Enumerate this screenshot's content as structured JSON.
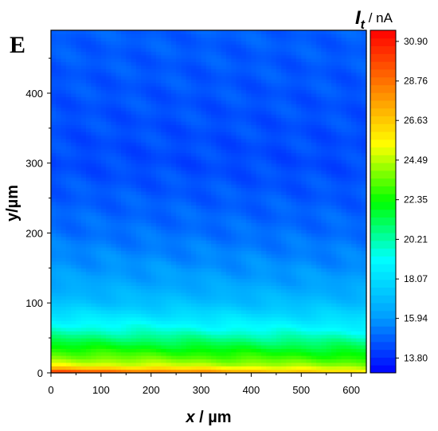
{
  "panel_label": "E",
  "chart_data": {
    "type": "heatmap",
    "title": "",
    "xlabel": {
      "symbol": "x",
      "unit": " / µm"
    },
    "ylabel": "y/µm",
    "xlim": [
      0,
      630
    ],
    "ylim": [
      0,
      490
    ],
    "x_ticks": [
      0,
      100,
      200,
      300,
      400,
      500,
      600
    ],
    "y_ticks": [
      0,
      100,
      200,
      300,
      400
    ],
    "x_tick_labels": [
      "0",
      "100",
      "200",
      "300",
      "400",
      "500",
      "600"
    ],
    "y_tick_labels": [
      "0",
      "100",
      "200",
      "300",
      "400"
    ],
    "colorbar": {
      "title_symbol": "I",
      "title_subscript": "t",
      "title_unit": " / nA",
      "min": 13.0,
      "max": 31.5,
      "ticks": [
        30.9,
        28.76,
        26.63,
        24.49,
        22.35,
        20.21,
        18.07,
        15.94,
        13.8
      ],
      "tick_labels": [
        "30.90",
        "28.76",
        "26.63",
        "24.49",
        "22.35",
        "20.21",
        "18.07",
        "15.94",
        "13.80"
      ],
      "colors": [
        "#0000ff",
        "#00a0ff",
        "#00ffff",
        "#00ff00",
        "#ffff00",
        "#ff8000",
        "#ff0000"
      ]
    },
    "current_profile_vs_y": {
      "y": [
        0,
        10,
        20,
        40,
        60,
        80,
        100,
        130,
        160,
        200,
        250,
        300,
        400,
        490
      ],
      "current_at_x0": [
        30.8,
        25.5,
        24.0,
        22.0,
        20.0,
        18.5,
        17.2,
        16.3,
        15.8,
        15.2,
        14.8,
        14.4,
        14.6,
        14.8
      ],
      "current_at_x630": [
        26.0,
        24.0,
        22.8,
        21.0,
        19.2,
        18.0,
        17.0,
        16.1,
        15.6,
        15.1,
        14.7,
        14.4,
        14.6,
        14.8
      ]
    }
  }
}
